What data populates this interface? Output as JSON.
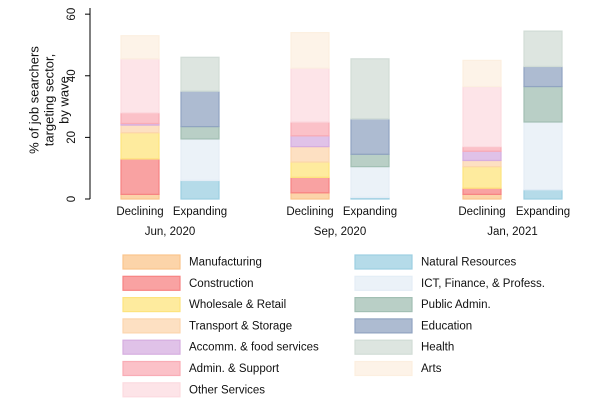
{
  "chart_data": {
    "type": "stacked_bar",
    "y_label": [
      "% of job searchers",
      "targeting sector,",
      "by wave"
    ],
    "categories": [
      "Declining",
      "Expanding",
      "Declining",
      "Expanding",
      "Declining",
      "Expanding"
    ],
    "groups": [
      "Jun, 2020",
      "Sep, 2020",
      "Jan, 2021"
    ],
    "ylim": [
      0,
      62
    ],
    "yticks": [
      0,
      20,
      40,
      60
    ],
    "series": [
      {
        "name": "Manufacturing",
        "color": "#fbc58c",
        "values": [
          1.5,
          0,
          2,
          0,
          1.5,
          0
        ]
      },
      {
        "name": "Construction",
        "color": "#f78383",
        "values": [
          11.5,
          0,
          5,
          0,
          2,
          0
        ]
      },
      {
        "name": "Wholesale & Retail",
        "color": "#fde47e",
        "values": [
          8.5,
          0,
          5,
          0,
          7,
          0
        ]
      },
      {
        "name": "Transport & Storage",
        "color": "#fcd6ae",
        "values": [
          2.5,
          0,
          5,
          0,
          2,
          0
        ]
      },
      {
        "name": "Accomm. & food services",
        "color": "#d6ade0",
        "values": [
          0.5,
          0,
          3.5,
          0,
          3,
          0
        ]
      },
      {
        "name": "Admin. & Support",
        "color": "#f9acb5",
        "values": [
          3.5,
          0,
          4.5,
          0,
          1.5,
          0
        ]
      },
      {
        "name": "Other Services",
        "color": "#fcdbe0",
        "values": [
          17.5,
          0,
          17.5,
          0,
          19.5,
          0
        ]
      },
      {
        "name": "Natural Resources",
        "color": "#9ccfe2",
        "values": [
          0,
          6,
          0,
          0.5,
          0,
          3
        ]
      },
      {
        "name": "ICT, Finance, & Profess.",
        "color": "#e4edf6",
        "values": [
          0,
          13.5,
          0,
          10,
          0,
          22
        ]
      },
      {
        "name": "Public Admin.",
        "color": "#a2bfb3",
        "values": [
          0,
          4,
          0,
          4,
          0,
          11.5
        ]
      },
      {
        "name": "Education",
        "color": "#91a4c1",
        "values": [
          0,
          11.5,
          0,
          11.5,
          0,
          6.5
        ]
      },
      {
        "name": "Health",
        "color": "#d1dcd6",
        "values": [
          0,
          11,
          0,
          19.5,
          0,
          11.5
        ]
      },
      {
        "name": "Arts",
        "color": "#fcefe0",
        "values": [
          7.5,
          0,
          11.5,
          0,
          8.5,
          0
        ]
      }
    ]
  }
}
